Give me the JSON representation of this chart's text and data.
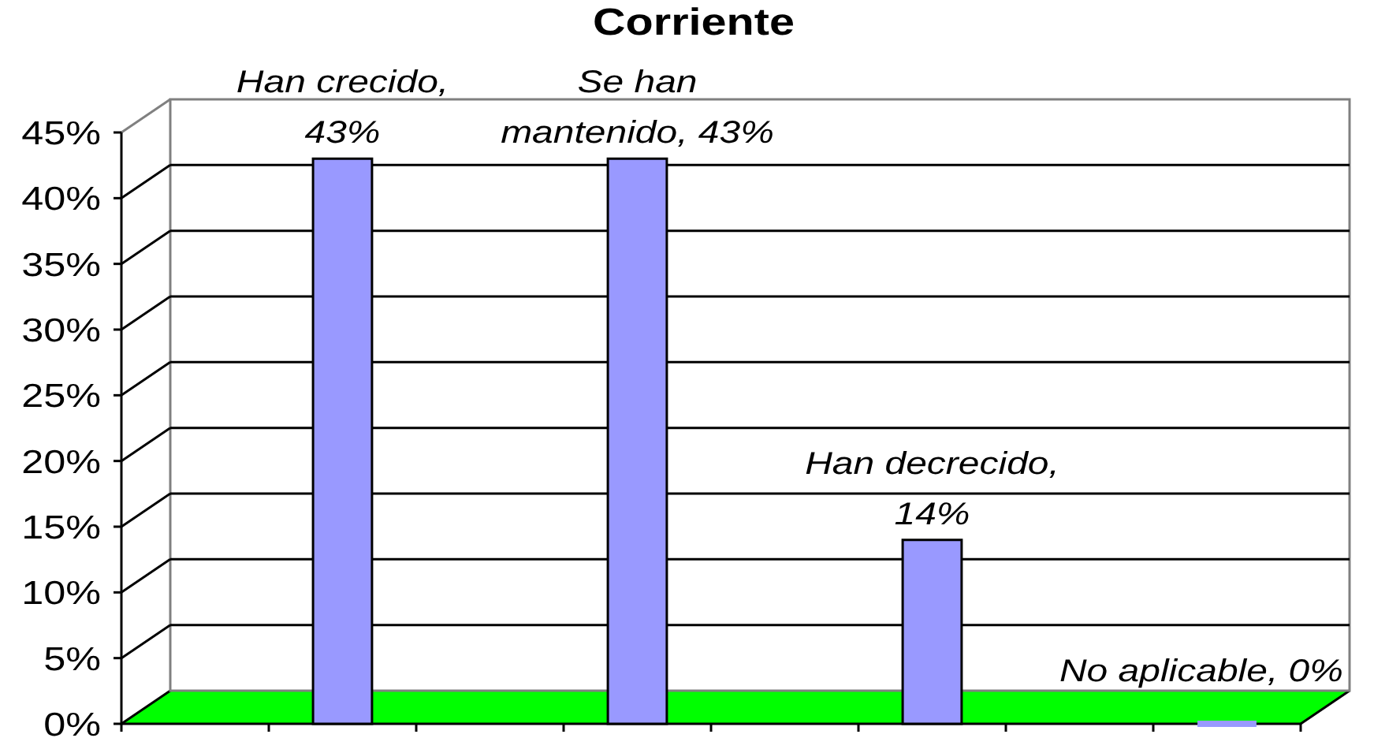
{
  "chart_data": {
    "type": "bar",
    "title": "Corriente",
    "categories": [
      null,
      null,
      null,
      null,
      null,
      null,
      null,
      null
    ],
    "values": [
      null,
      43,
      null,
      43,
      null,
      14,
      null,
      0
    ],
    "color": "#9999ff",
    "ylim": [
      0,
      45
    ],
    "yticks": [
      {
        "value": 0,
        "label": "0%"
      },
      {
        "value": 5,
        "label": "5%"
      },
      {
        "value": 10,
        "label": "10%"
      },
      {
        "value": 15,
        "label": "15%"
      },
      {
        "value": 20,
        "label": "20%"
      },
      {
        "value": 25,
        "label": "25%"
      },
      {
        "value": 30,
        "label": "30%"
      },
      {
        "value": 35,
        "label": "35%"
      },
      {
        "value": 40,
        "label": "40%"
      },
      {
        "value": 45,
        "label": "45%"
      }
    ],
    "grid": true,
    "value_labels": [
      null,
      "Han crecido, 43%",
      null,
      "Se han mantenido, 43%",
      null,
      "Han decrecido, 14%",
      null,
      "No aplicable, 0%"
    ]
  }
}
